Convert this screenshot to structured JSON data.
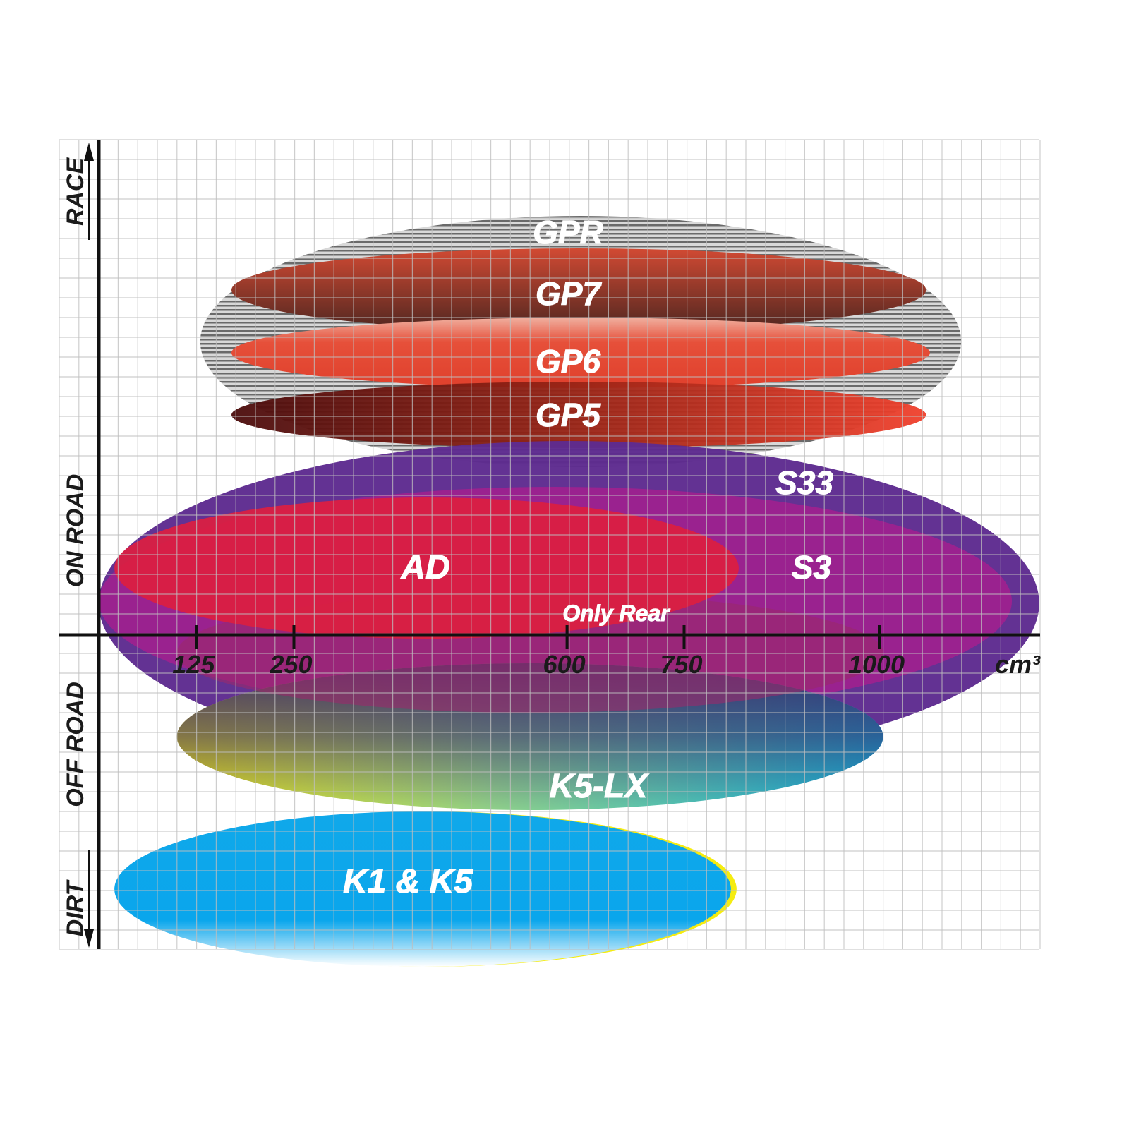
{
  "chart_data": {
    "type": "range-ellipse",
    "xlabel": "cm³",
    "x_ticks": [
      125,
      250,
      600,
      750,
      1000
    ],
    "xlim": [
      0,
      1200
    ],
    "y_categories": [
      "RACE",
      "ON ROAD",
      "OFF ROAD",
      "DIRT"
    ],
    "grid": true,
    "series": [
      {
        "name": "GPR",
        "x_range": [
          130,
          1105
        ],
        "color": "#9a9a9a"
      },
      {
        "name": "GP7",
        "x_range": [
          170,
          1060
        ],
        "color": "#b8432f"
      },
      {
        "name": "GP6",
        "x_range": [
          170,
          1065
        ],
        "color": "#e4452f"
      },
      {
        "name": "GP5",
        "x_range": [
          170,
          1060
        ],
        "color": "#a82218"
      },
      {
        "name": "S33",
        "x_range": [
          0,
          1205
        ],
        "color": "#5e2b8f"
      },
      {
        "name": "S3",
        "x_range": [
          0,
          1170
        ],
        "color": "#a0208f"
      },
      {
        "name": "AD",
        "x_range": [
          20,
          820
        ],
        "color": "#dc1e40"
      },
      {
        "name": "Only Rear",
        "x_range": [
          100,
          1005
        ],
        "color": "#9b2a6a"
      },
      {
        "name": "K5-LX",
        "x_range": [
          100,
          1005
        ],
        "color": "#1fb3d6"
      },
      {
        "name": "K1 & K5",
        "x_range": [
          20,
          810
        ],
        "color": "#0aa8e8"
      }
    ]
  }
}
